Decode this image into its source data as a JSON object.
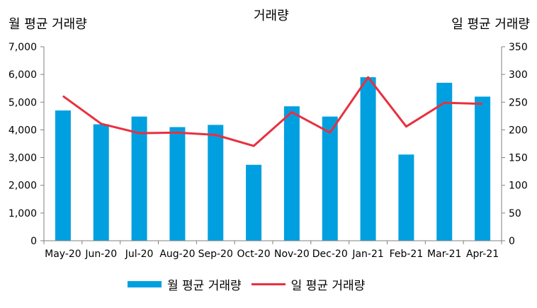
{
  "chart_data": {
    "type": "bar+line",
    "title": "거래량",
    "ylabel_left": "월 평균 거래량",
    "ylabel_right": "일 평균 거래량",
    "categories": [
      "May-20",
      "Jun-20",
      "Jul-20",
      "Aug-20",
      "Sep-20",
      "Oct-20",
      "Nov-20",
      "Dec-20",
      "Jan-21",
      "Feb-21",
      "Mar-21",
      "Apr-21"
    ],
    "series": [
      {
        "name": "월 평균 거래량",
        "type": "bar",
        "axis": "left",
        "color": "#00a0e0",
        "values": [
          4700,
          4200,
          4480,
          4100,
          4180,
          2740,
          4850,
          4480,
          5900,
          3110,
          5700,
          5200
        ]
      },
      {
        "name": "일 평균 거래량",
        "type": "line",
        "axis": "right",
        "color": "#e8303f",
        "values": [
          261,
          211,
          194,
          195,
          191,
          171,
          232,
          195,
          295,
          206,
          249,
          247
        ]
      }
    ],
    "ylim_left": [
      0,
      7000
    ],
    "yticks_left": [
      "0",
      "1,000",
      "2,000",
      "3,000",
      "4,000",
      "5,000",
      "6,000",
      "7,000"
    ],
    "ylim_right": [
      0,
      350
    ],
    "yticks_right": [
      "0",
      "50",
      "100",
      "150",
      "200",
      "250",
      "300",
      "350"
    ],
    "grid": false,
    "legend_position": "bottom"
  }
}
